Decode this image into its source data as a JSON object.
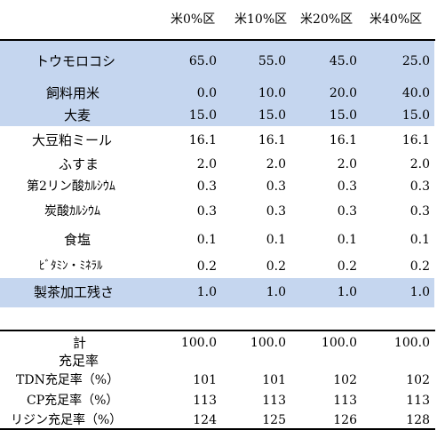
{
  "header": [
    "米0%区",
    "米10%区",
    "米20%区",
    "米40%区"
  ],
  "rows": [
    {
      "label": "トウモロコシ",
      "values": [
        "65.0",
        "55.0",
        "45.0",
        "25.0"
      ]
    },
    {
      "label": "飼料用米",
      "values": [
        "0.0",
        "10.0",
        "20.0",
        "40.0"
      ]
    },
    {
      "label": "大麦",
      "values": [
        "15.0",
        "15.0",
        "15.0",
        "15.0"
      ]
    },
    {
      "label": "大豆粕ミール",
      "values": [
        "16.1",
        "16.1",
        "16.1",
        "16.1"
      ]
    },
    {
      "label": "ふすま",
      "values": [
        "2.0",
        "2.0",
        "2.0",
        "2.0"
      ]
    },
    {
      "label": "第2リン酸ｶﾙｼｳﾑ",
      "values": [
        "0.3",
        "0.3",
        "0.3",
        "0.3"
      ]
    },
    {
      "label": "炭酸ｶﾙｼｳﾑ",
      "values": [
        "0.3",
        "0.3",
        "0.3",
        "0.3"
      ]
    },
    {
      "label": "食塩",
      "values": [
        "0.1",
        "0.1",
        "0.1",
        "0.1"
      ]
    },
    {
      "label": "ﾋﾞﾀﾐﾝ・ﾐﾈﾗﾙ",
      "values": [
        "0.2",
        "0.2",
        "0.2",
        "0.2"
      ]
    },
    {
      "label": "製茶加工残さ",
      "values": [
        "1.0",
        "1.0",
        "1.0",
        "1.0"
      ]
    }
  ],
  "total": {
    "label": "計",
    "values": [
      "100.0",
      "100.0",
      "100.0",
      "100.0"
    ]
  },
  "fulfillment": {
    "label": "充足率",
    "rows": [
      {
        "label": "TDN充足率（%）",
        "values": [
          "101",
          "101",
          "102",
          "102"
        ]
      },
      {
        "label": "CP充足率（%）",
        "values": [
          "113",
          "113",
          "113",
          "113"
        ]
      },
      {
        "label": "リジン充足率（%）",
        "values": [
          "124",
          "125",
          "126",
          "128"
        ]
      }
    ]
  },
  "colors": {
    "highlight": "#c5d6ef"
  }
}
